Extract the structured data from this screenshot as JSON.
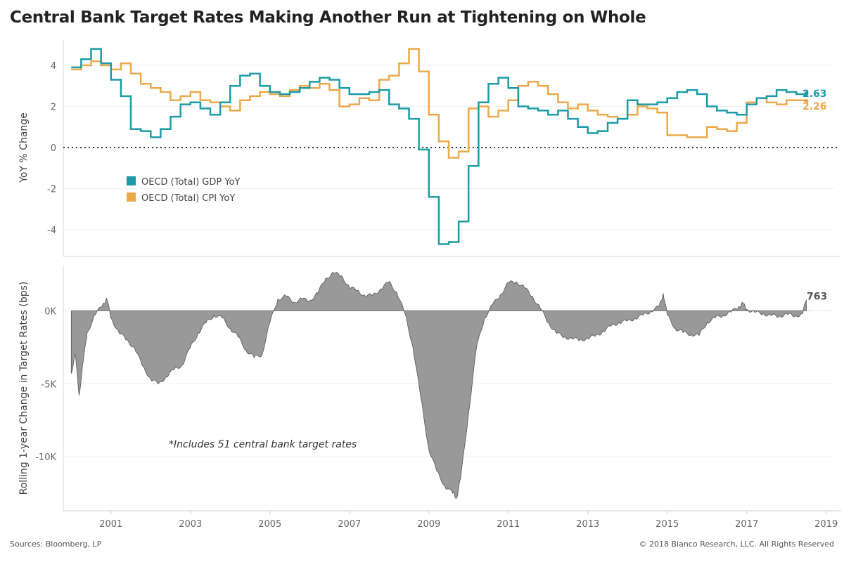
{
  "title": "Central Bank Target Rates Making Another Run at Tightening on Whole",
  "footer": {
    "source": "Sources: Bloomberg, LP",
    "copyright": "© 2018 Bianco Research, LLC. All Rights Reserved"
  },
  "colors": {
    "gdp": "#1a9ba6",
    "cpi": "#eba94a",
    "area": "#999999",
    "area_edge": "#555555"
  },
  "chart_data": [
    {
      "type": "line",
      "step": true,
      "ylabel": "YoY % Change",
      "ylim": [
        -5.3,
        5.3
      ],
      "yticks": [
        -4,
        -2,
        0,
        2,
        4
      ],
      "xlim": [
        1999.8,
        2019.2
      ],
      "zero_line": "dotted",
      "legend_position": "middle-left",
      "series": [
        {
          "name": "OECD (Total) GDP YoY",
          "end_label": "2.63",
          "x": [
            2000.0,
            2000.25,
            2000.5,
            2000.75,
            2001.0,
            2001.25,
            2001.5,
            2001.75,
            2002.0,
            2002.25,
            2002.5,
            2002.75,
            2003.0,
            2003.25,
            2003.5,
            2003.75,
            2004.0,
            2004.25,
            2004.5,
            2004.75,
            2005.0,
            2005.25,
            2005.5,
            2005.75,
            2006.0,
            2006.25,
            2006.5,
            2006.75,
            2007.0,
            2007.25,
            2007.5,
            2007.75,
            2008.0,
            2008.25,
            2008.5,
            2008.75,
            2009.0,
            2009.25,
            2009.5,
            2009.75,
            2010.0,
            2010.25,
            2010.5,
            2010.75,
            2011.0,
            2011.25,
            2011.5,
            2011.75,
            2012.0,
            2012.25,
            2012.5,
            2012.75,
            2013.0,
            2013.25,
            2013.5,
            2013.75,
            2014.0,
            2014.25,
            2014.5,
            2014.75,
            2015.0,
            2015.25,
            2015.5,
            2015.75,
            2016.0,
            2016.25,
            2016.5,
            2016.75,
            2017.0,
            2017.25,
            2017.5,
            2017.75,
            2018.0,
            2018.25,
            2018.5
          ],
          "values": [
            3.9,
            4.3,
            4.8,
            4.1,
            3.3,
            2.5,
            0.9,
            0.8,
            0.5,
            0.9,
            1.5,
            2.1,
            2.2,
            1.9,
            1.6,
            2.2,
            3.0,
            3.5,
            3.6,
            3.0,
            2.7,
            2.6,
            2.7,
            2.9,
            3.2,
            3.4,
            3.3,
            2.9,
            2.6,
            2.6,
            2.7,
            2.8,
            2.1,
            1.9,
            1.4,
            -0.1,
            -2.4,
            -4.7,
            -4.6,
            -3.6,
            -0.9,
            2.2,
            3.1,
            3.4,
            2.9,
            2.0,
            1.9,
            1.8,
            1.6,
            1.8,
            1.4,
            1.0,
            0.7,
            0.8,
            1.2,
            1.4,
            2.3,
            2.1,
            2.1,
            2.2,
            2.4,
            2.7,
            2.8,
            2.6,
            2.0,
            1.8,
            1.7,
            1.6,
            2.1,
            2.4,
            2.5,
            2.8,
            2.7,
            2.6,
            2.63
          ]
        },
        {
          "name": "OECD (Total) CPI YoY",
          "end_label": "2.26",
          "x": [
            2000.0,
            2000.25,
            2000.5,
            2000.75,
            2001.0,
            2001.25,
            2001.5,
            2001.75,
            2002.0,
            2002.25,
            2002.5,
            2002.75,
            2003.0,
            2003.25,
            2003.5,
            2003.75,
            2004.0,
            2004.25,
            2004.5,
            2004.75,
            2005.0,
            2005.25,
            2005.5,
            2005.75,
            2006.0,
            2006.25,
            2006.5,
            2006.75,
            2007.0,
            2007.25,
            2007.5,
            2007.75,
            2008.0,
            2008.25,
            2008.5,
            2008.75,
            2009.0,
            2009.25,
            2009.5,
            2009.75,
            2010.0,
            2010.25,
            2010.5,
            2010.75,
            2011.0,
            2011.25,
            2011.5,
            2011.75,
            2012.0,
            2012.25,
            2012.5,
            2012.75,
            2013.0,
            2013.25,
            2013.5,
            2013.75,
            2014.0,
            2014.25,
            2014.5,
            2014.75,
            2015.0,
            2015.25,
            2015.5,
            2015.75,
            2016.0,
            2016.25,
            2016.5,
            2016.75,
            2017.0,
            2017.25,
            2017.5,
            2017.75,
            2018.0,
            2018.25,
            2018.5
          ],
          "values": [
            3.8,
            4.0,
            4.2,
            4.0,
            3.8,
            4.1,
            3.6,
            3.1,
            2.9,
            2.7,
            2.3,
            2.5,
            2.7,
            2.3,
            2.2,
            2.0,
            1.8,
            2.3,
            2.5,
            2.7,
            2.6,
            2.5,
            2.8,
            3.0,
            2.9,
            3.1,
            2.8,
            2.0,
            2.1,
            2.4,
            2.3,
            3.3,
            3.5,
            4.1,
            4.8,
            3.7,
            1.6,
            0.3,
            -0.5,
            -0.2,
            1.9,
            2.0,
            1.5,
            1.8,
            2.3,
            3.0,
            3.2,
            3.0,
            2.6,
            2.2,
            1.9,
            2.1,
            1.8,
            1.6,
            1.5,
            1.4,
            1.6,
            2.0,
            1.9,
            1.7,
            0.6,
            0.6,
            0.5,
            0.5,
            1.0,
            0.9,
            0.8,
            1.2,
            2.2,
            2.4,
            2.2,
            2.1,
            2.3,
            2.3,
            2.26
          ]
        }
      ]
    },
    {
      "type": "area",
      "ylabel": "Rolling 1-year Change in Target Rates (bps)",
      "ylim": [
        -13700,
        3100
      ],
      "yticks": [
        {
          "value": -10000,
          "label": "-10K"
        },
        {
          "value": -5000,
          "label": "-5K"
        },
        {
          "value": 0,
          "label": "0K"
        }
      ],
      "xlim": [
        1999.8,
        2019.2
      ],
      "xticks": [
        "2001",
        "2003",
        "2005",
        "2007",
        "2009",
        "2011",
        "2013",
        "2015",
        "2017",
        "2019"
      ],
      "zero_line": "dotted",
      "annotation": "*Includes 51 central bank target rates",
      "end_label": "763",
      "x": [
        2000.0,
        2000.1,
        2000.2,
        2000.3,
        2000.4,
        2000.6,
        2000.8,
        2000.9,
        2001.0,
        2001.2,
        2001.4,
        2001.6,
        2001.8,
        2002.0,
        2002.2,
        2002.4,
        2002.6,
        2002.8,
        2003.0,
        2003.2,
        2003.4,
        2003.6,
        2003.8,
        2004.0,
        2004.2,
        2004.4,
        2004.6,
        2004.8,
        2005.0,
        2005.2,
        2005.4,
        2005.6,
        2005.8,
        2006.0,
        2006.2,
        2006.4,
        2006.6,
        2006.8,
        2007.0,
        2007.2,
        2007.4,
        2007.6,
        2007.8,
        2008.0,
        2008.2,
        2008.4,
        2008.6,
        2008.8,
        2009.0,
        2009.2,
        2009.4,
        2009.6,
        2009.7,
        2009.8,
        2010.0,
        2010.2,
        2010.4,
        2010.6,
        2010.8,
        2011.0,
        2011.2,
        2011.4,
        2011.6,
        2011.8,
        2012.0,
        2012.2,
        2012.4,
        2012.6,
        2012.8,
        2013.0,
        2013.2,
        2013.4,
        2013.6,
        2013.8,
        2014.0,
        2014.2,
        2014.4,
        2014.6,
        2014.8,
        2014.9,
        2015.0,
        2015.2,
        2015.4,
        2015.6,
        2015.8,
        2016.0,
        2016.2,
        2016.4,
        2016.6,
        2016.8,
        2016.9,
        2017.0,
        2017.2,
        2017.4,
        2017.6,
        2017.8,
        2018.0,
        2018.2,
        2018.4,
        2018.5
      ],
      "values": [
        -4300,
        -3000,
        -5800,
        -3500,
        -1500,
        -300,
        500,
        800,
        -500,
        -1500,
        -2000,
        -2600,
        -3800,
        -4700,
        -5000,
        -4500,
        -4000,
        -3700,
        -2500,
        -1500,
        -800,
        -300,
        -500,
        -1200,
        -1800,
        -2700,
        -3200,
        -3000,
        -800,
        800,
        1000,
        600,
        800,
        700,
        1200,
        2200,
        2600,
        2400,
        1600,
        1400,
        1000,
        1100,
        1500,
        2000,
        1200,
        -200,
        -2500,
        -6000,
        -9500,
        -11000,
        -12000,
        -12500,
        -12800,
        -11500,
        -7000,
        -2500,
        -500,
        400,
        1100,
        1900,
        2000,
        1600,
        1000,
        200,
        -800,
        -1500,
        -1800,
        -1900,
        -2000,
        -1900,
        -1700,
        -1400,
        -1000,
        -800,
        -700,
        -500,
        -300,
        0,
        300,
        1200,
        -300,
        -1200,
        -1500,
        -1600,
        -1700,
        -800,
        -500,
        -300,
        -100,
        300,
        500,
        100,
        -100,
        -200,
        -300,
        -400,
        -200,
        -400,
        -200,
        763
      ]
    }
  ]
}
